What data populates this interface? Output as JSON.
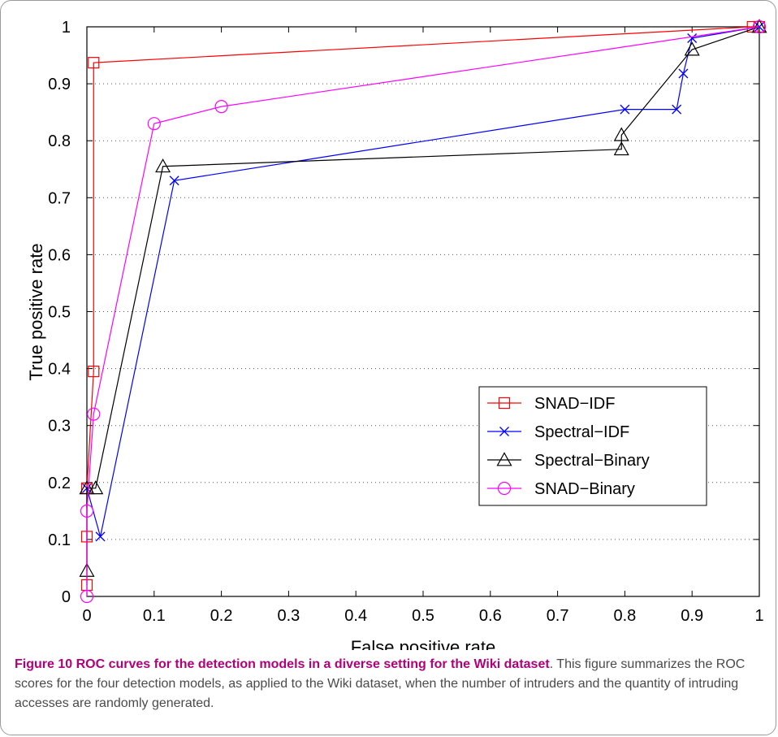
{
  "chart_data": {
    "type": "line",
    "xlabel": "False positive rate",
    "ylabel": "True positive rate",
    "xlim": [
      0,
      1
    ],
    "ylim": [
      0,
      1
    ],
    "xticks": [
      "0",
      "0.1",
      "0.2",
      "0.3",
      "0.4",
      "0.5",
      "0.6",
      "0.7",
      "0.8",
      "0.9",
      "1"
    ],
    "yticks": [
      "0",
      "0.1",
      "0.2",
      "0.3",
      "0.4",
      "0.5",
      "0.6",
      "0.7",
      "0.8",
      "0.9",
      "1"
    ],
    "grid": "dotted horizontal",
    "legend_position": "center-right",
    "series": [
      {
        "name": "SNAD−IDF",
        "color": "#ff0000",
        "marker": "square",
        "x": [
          0,
          0,
          0,
          0.01,
          0.01,
          0.99,
          1.0
        ],
        "y": [
          0.02,
          0.105,
          0.19,
          0.395,
          0.937,
          1.0,
          1.0
        ]
      },
      {
        "name": "Spectral−IDF",
        "color": "#0000ff",
        "marker": "x",
        "x": [
          0,
          0.02,
          0.13,
          0.8,
          0.877,
          0.887,
          0.9,
          1.0
        ],
        "y": [
          0.19,
          0.105,
          0.73,
          0.855,
          0.855,
          0.918,
          0.98,
          1.0
        ]
      },
      {
        "name": "Spectral−Binary",
        "color": "#000000",
        "marker": "triangle",
        "x": [
          0,
          0,
          0.013,
          0.113,
          0.795,
          0.795,
          0.9,
          1.0
        ],
        "y": [
          0.045,
          0.19,
          0.19,
          0.755,
          0.785,
          0.81,
          0.96,
          1.0
        ]
      },
      {
        "name": "SNAD−Binary",
        "color": "#ff00ff",
        "marker": "circle",
        "x": [
          0,
          0,
          0.01,
          0.1,
          0.2,
          1.0
        ],
        "y": [
          0,
          0.15,
          0.32,
          0.83,
          0.86,
          1.0
        ]
      }
    ]
  },
  "caption": {
    "title": "Figure 10 ROC curves for the detection models in a diverse setting for the Wiki dataset",
    "body": ". This figure summarizes the ROC scores for the four detection models, as applied to the Wiki dataset, when the number of intruders and the quantity of intruding accesses are randomly generated."
  }
}
